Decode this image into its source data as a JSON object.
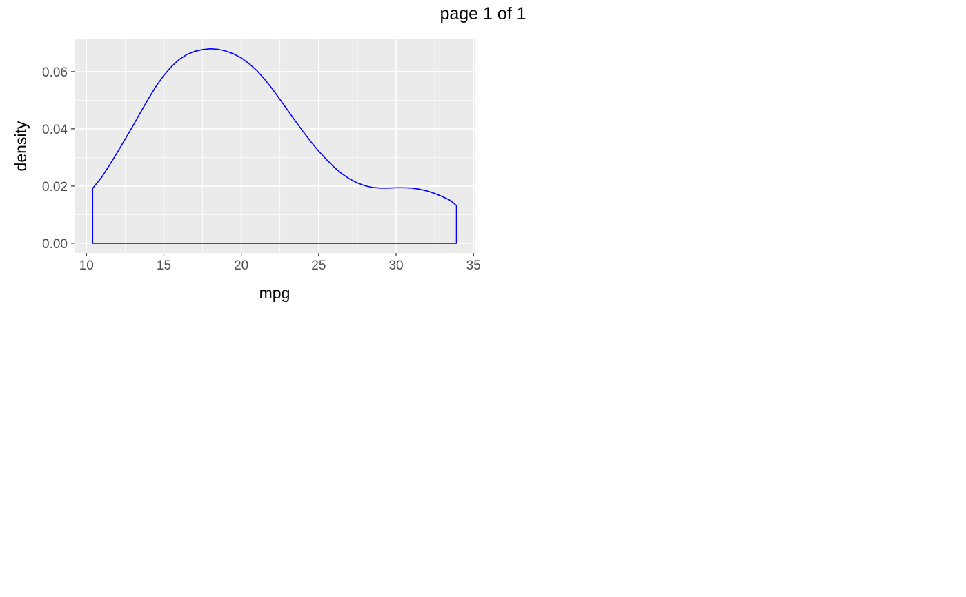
{
  "page": {
    "title": "page 1 of 1"
  },
  "chart_data": {
    "type": "area",
    "title": "",
    "xlabel": "mpg",
    "ylabel": "density",
    "xlim": [
      9.23,
      35.08
    ],
    "ylim": [
      -0.0034,
      0.0713
    ],
    "x_ticks": [
      10,
      15,
      20,
      25,
      30,
      35
    ],
    "x_tick_labels": [
      "10",
      "15",
      "20",
      "25",
      "30",
      "35"
    ],
    "y_ticks": [
      0.0,
      0.02,
      0.04,
      0.06
    ],
    "y_tick_labels": [
      "0.00",
      "0.02",
      "0.04",
      "0.06"
    ],
    "grid": true,
    "panel_background": "#ebebeb",
    "grid_color": "#ffffff",
    "outline_color": "#0000ff",
    "fill": "none",
    "series": [
      {
        "x": [
          10.4,
          11,
          11.5,
          12,
          12.5,
          13,
          13.5,
          14,
          14.5,
          15,
          15.5,
          16,
          16.5,
          17,
          17.5,
          18,
          18.5,
          19,
          19.5,
          20,
          20.5,
          21,
          21.5,
          22,
          22.5,
          23,
          23.5,
          24,
          24.5,
          25,
          25.5,
          26,
          26.5,
          27,
          27.5,
          28,
          28.5,
          29,
          29.5,
          30,
          30.5,
          31,
          31.5,
          32,
          32.5,
          33,
          33.5,
          33.9
        ],
        "y": [
          0.0192,
          0.0232,
          0.0274,
          0.0318,
          0.0364,
          0.041,
          0.0458,
          0.0505,
          0.0549,
          0.0587,
          0.0618,
          0.0643,
          0.066,
          0.0671,
          0.0677,
          0.068,
          0.0678,
          0.0672,
          0.0662,
          0.0648,
          0.0628,
          0.0604,
          0.0574,
          0.054,
          0.0503,
          0.0465,
          0.0427,
          0.039,
          0.0355,
          0.0322,
          0.0293,
          0.0266,
          0.0243,
          0.0225,
          0.0211,
          0.0201,
          0.0195,
          0.0193,
          0.0193,
          0.0194,
          0.0194,
          0.0193,
          0.0189,
          0.0183,
          0.0174,
          0.0163,
          0.015,
          0.0132
        ]
      }
    ]
  }
}
